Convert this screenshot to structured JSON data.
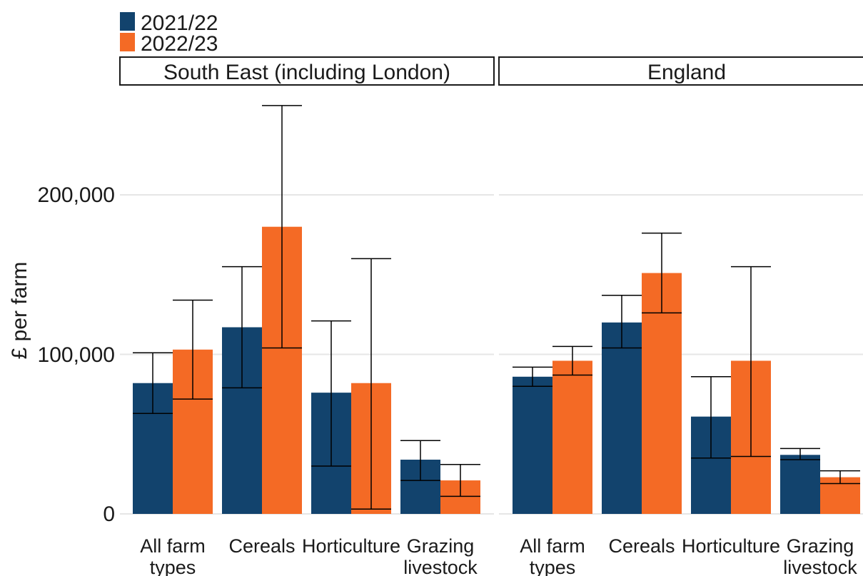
{
  "chart_data": {
    "type": "bar",
    "ylabel": "£ per farm",
    "xlabel": "",
    "ylim": [
      0,
      255000
    ],
    "yticks": [
      0,
      100000,
      200000
    ],
    "ytick_labels": [
      "0",
      "100,000",
      "200,000"
    ],
    "grid": true,
    "legend_position": "top-left",
    "categories": [
      "All farm\ntypes",
      "Cereals",
      "Horticulture",
      "Grazing\nlivestock"
    ],
    "series": [
      {
        "name": "2021/22",
        "color": "#12436D"
      },
      {
        "name": "2022/23",
        "color": "#F46A25"
      }
    ],
    "panels": [
      {
        "title": "South East (including London)",
        "values": {
          "2021/22": [
            82000,
            117000,
            76000,
            34000
          ],
          "2022/23": [
            103000,
            180000,
            82000,
            21000
          ]
        },
        "error_low": {
          "2021/22": [
            63000,
            79000,
            30000,
            21000
          ],
          "2022/23": [
            72000,
            104000,
            3000,
            11000
          ]
        },
        "error_high": {
          "2021/22": [
            101000,
            155000,
            121000,
            46000
          ],
          "2022/23": [
            134000,
            256000,
            160000,
            31000
          ]
        }
      },
      {
        "title": "England",
        "values": {
          "2021/22": [
            86000,
            120000,
            61000,
            37000
          ],
          "2022/23": [
            96000,
            151000,
            96000,
            23000
          ]
        },
        "error_low": {
          "2021/22": [
            80000,
            104000,
            35000,
            34000
          ],
          "2022/23": [
            87000,
            126000,
            36000,
            19000
          ]
        },
        "error_high": {
          "2021/22": [
            92000,
            137000,
            86000,
            41000
          ],
          "2022/23": [
            105000,
            176000,
            155000,
            27000
          ]
        }
      }
    ]
  }
}
